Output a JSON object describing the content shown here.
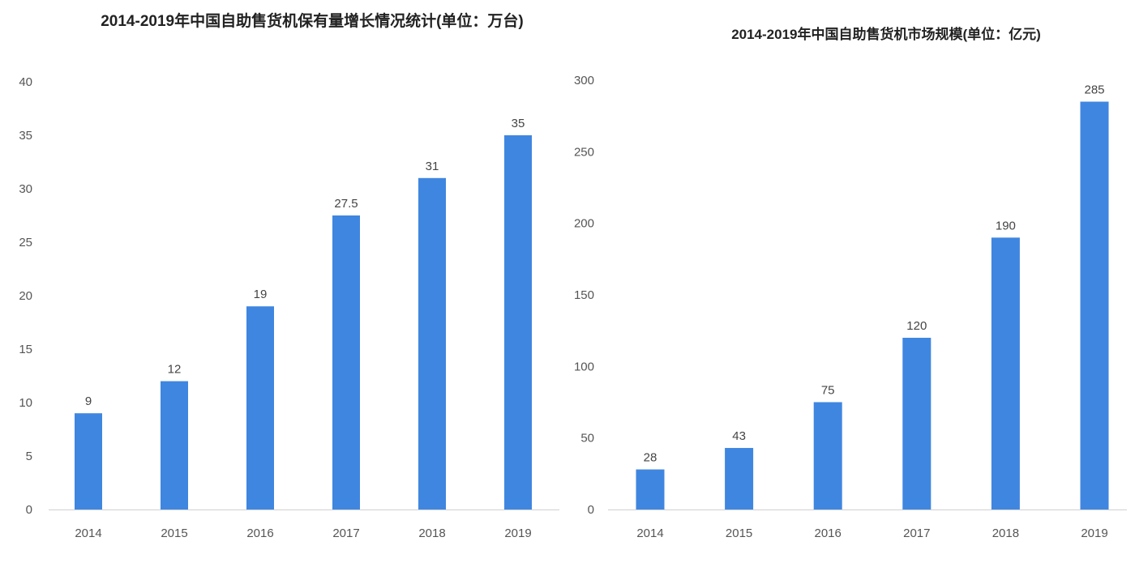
{
  "chart_data": [
    {
      "type": "bar",
      "title": "2014-2019年中国自助售货机保有量增长情况统计(单位：万台)",
      "categories": [
        "2014",
        "2015",
        "2016",
        "2017",
        "2018",
        "2019"
      ],
      "values": [
        9,
        12,
        19,
        27.5,
        31,
        35
      ],
      "value_labels": [
        "9",
        "12",
        "19",
        "27.5",
        "31",
        "35"
      ],
      "yticks": [
        "0",
        "5",
        "10",
        "15",
        "20",
        "25",
        "30",
        "35",
        "40"
      ],
      "ylim": [
        0,
        40
      ],
      "xlabel": "",
      "ylabel": "",
      "grid": false,
      "bar_color": "#3f86e0"
    },
    {
      "type": "bar",
      "title": "2014-2019年中国自助售货机市场规模(单位：亿元)",
      "categories": [
        "2014",
        "2015",
        "2016",
        "2017",
        "2018",
        "2019"
      ],
      "values": [
        28,
        43,
        75,
        120,
        190,
        285
      ],
      "value_labels": [
        "28",
        "43",
        "75",
        "120",
        "190",
        "285"
      ],
      "yticks": [
        "0",
        "50",
        "100",
        "150",
        "200",
        "250",
        "300"
      ],
      "ylim": [
        0,
        300
      ],
      "xlabel": "",
      "ylabel": "",
      "grid": false,
      "bar_color": "#3f86e0"
    }
  ]
}
